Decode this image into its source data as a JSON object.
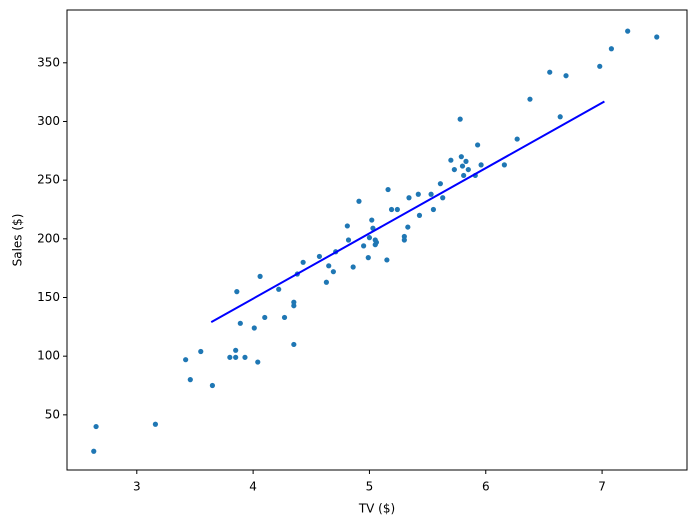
{
  "chart_data": {
    "type": "scatter",
    "x_label": "TV ($)",
    "y_label": "Sales ($)",
    "x": [
      2.63,
      2.65,
      3.16,
      3.42,
      3.46,
      3.55,
      3.65,
      3.8,
      3.85,
      3.85,
      3.86,
      3.89,
      3.93,
      4.01,
      4.04,
      4.06,
      4.1,
      4.22,
      4.27,
      4.35,
      4.35,
      4.35,
      4.38,
      4.43,
      4.57,
      4.63,
      4.65,
      4.69,
      4.71,
      4.81,
      4.82,
      4.86,
      4.91,
      4.95,
      4.99,
      5.0,
      5.02,
      5.03,
      5.05,
      5.05,
      5.06,
      5.15,
      5.16,
      5.19,
      5.24,
      5.3,
      5.3,
      5.33,
      5.34,
      5.42,
      5.43,
      5.53,
      5.55,
      5.61,
      5.63,
      5.7,
      5.73,
      5.78,
      5.79,
      5.8,
      5.81,
      5.83,
      5.85,
      5.91,
      5.93,
      5.96,
      6.16,
      6.27,
      6.38,
      6.55,
      6.64,
      6.69,
      6.98,
      7.08,
      7.22,
      7.47
    ],
    "y": [
      19,
      40,
      42,
      97,
      80,
      104,
      75,
      99,
      99,
      105,
      155,
      128,
      99,
      124,
      95,
      168,
      133,
      157,
      133,
      110,
      143,
      146,
      170,
      180,
      185,
      163,
      177,
      172,
      189,
      211,
      199,
      176,
      232,
      194,
      184,
      201,
      216,
      209,
      199,
      195,
      197,
      182,
      242,
      225,
      225,
      202,
      199,
      210,
      235,
      238,
      220,
      238,
      225,
      247,
      235,
      267,
      259,
      302,
      270,
      262,
      254,
      266,
      259,
      254,
      280,
      263,
      263,
      285,
      319,
      342,
      304,
      339,
      347,
      362,
      377,
      372
    ],
    "color": "#1f77b4",
    "fit_line": {
      "x": [
        3.64,
        7.02
      ],
      "y": [
        129,
        317
      ],
      "color": "#0000ff"
    },
    "xlim": [
      2.4,
      7.73
    ],
    "ylim": [
      3,
      395
    ],
    "xticks": [
      3,
      4,
      5,
      6,
      7
    ],
    "yticks": [
      50,
      100,
      150,
      200,
      250,
      300,
      350
    ]
  }
}
